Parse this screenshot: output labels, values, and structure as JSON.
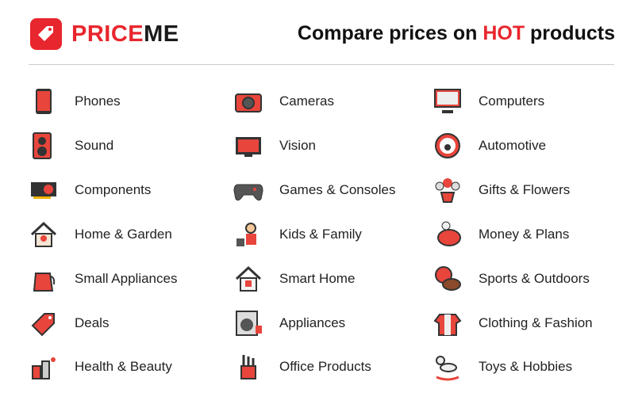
{
  "brand": {
    "name_red": "PRICE",
    "name_dark": "ME",
    "color": "#e8262d"
  },
  "tagline": {
    "before": "Compare prices on ",
    "hot": "HOT",
    "after": " products"
  },
  "categories": [
    {
      "label": "Phones",
      "icon": "phone-icon"
    },
    {
      "label": "Sound",
      "icon": "speaker-icon"
    },
    {
      "label": "Components",
      "icon": "graphics-card-icon"
    },
    {
      "label": "Home & Garden",
      "icon": "house-plant-icon"
    },
    {
      "label": "Small Appliances",
      "icon": "kettle-icon"
    },
    {
      "label": "Deals",
      "icon": "price-tag-icon"
    },
    {
      "label": "Health & Beauty",
      "icon": "cosmetics-icon"
    },
    {
      "label": "Cameras",
      "icon": "camera-icon"
    },
    {
      "label": "Vision",
      "icon": "tv-icon"
    },
    {
      "label": "Games & Consoles",
      "icon": "gamepad-icon"
    },
    {
      "label": "Kids & Family",
      "icon": "kid-blocks-icon"
    },
    {
      "label": "Smart Home",
      "icon": "smart-home-icon"
    },
    {
      "label": "Appliances",
      "icon": "washing-machine-icon"
    },
    {
      "label": "Office Products",
      "icon": "pen-holder-icon"
    },
    {
      "label": "Computers",
      "icon": "computer-icon"
    },
    {
      "label": "Automotive",
      "icon": "steering-wheel-icon"
    },
    {
      "label": "Gifts & Flowers",
      "icon": "flowers-icon"
    },
    {
      "label": "Money & Plans",
      "icon": "piggy-bank-icon"
    },
    {
      "label": "Sports & Outdoors",
      "icon": "balls-icon"
    },
    {
      "label": "Clothing & Fashion",
      "icon": "shirt-icon"
    },
    {
      "label": "Toys & Hobbies",
      "icon": "rocking-horse-icon"
    }
  ]
}
